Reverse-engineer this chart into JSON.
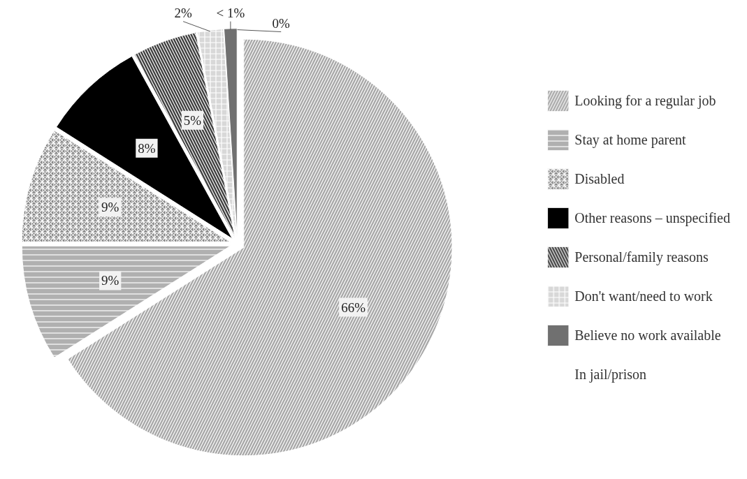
{
  "chart_data": {
    "type": "pie",
    "categories": [
      "Looking for a regular job",
      "Stay at home parent",
      "Disabled",
      "Other reasons – unspecified",
      "Personal/family reasons",
      "Don't want/need to work",
      "Believe no work available",
      "In jail/prison"
    ],
    "values": [
      66,
      9,
      9,
      8,
      5,
      2,
      1,
      0
    ],
    "value_labels": [
      "66%",
      "9%",
      "9%",
      "8%",
      "5%",
      "2%",
      "< 1%",
      "0%"
    ],
    "colors": [
      "#a8a8a8",
      "#b0b0b0",
      "#808080",
      "#000000",
      "#404040",
      "#d8d8d8",
      "#707070",
      "#c8c8c8"
    ],
    "legend": "right"
  }
}
